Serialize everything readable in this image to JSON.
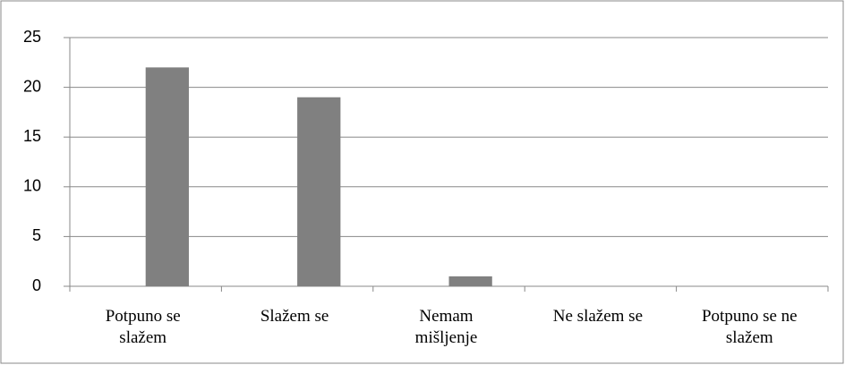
{
  "chart_data": {
    "type": "bar",
    "categories": [
      "Potpuno se slažem",
      "Slažem se",
      "Nemam mišljenje",
      "Ne slažem se",
      "Potpuno se ne slažem"
    ],
    "values": [
      22,
      19,
      1,
      0,
      0
    ],
    "color": "#808080",
    "ylim": [
      0,
      25
    ],
    "yticks": [
      0,
      5,
      10,
      15,
      20,
      25
    ],
    "grid": true
  }
}
